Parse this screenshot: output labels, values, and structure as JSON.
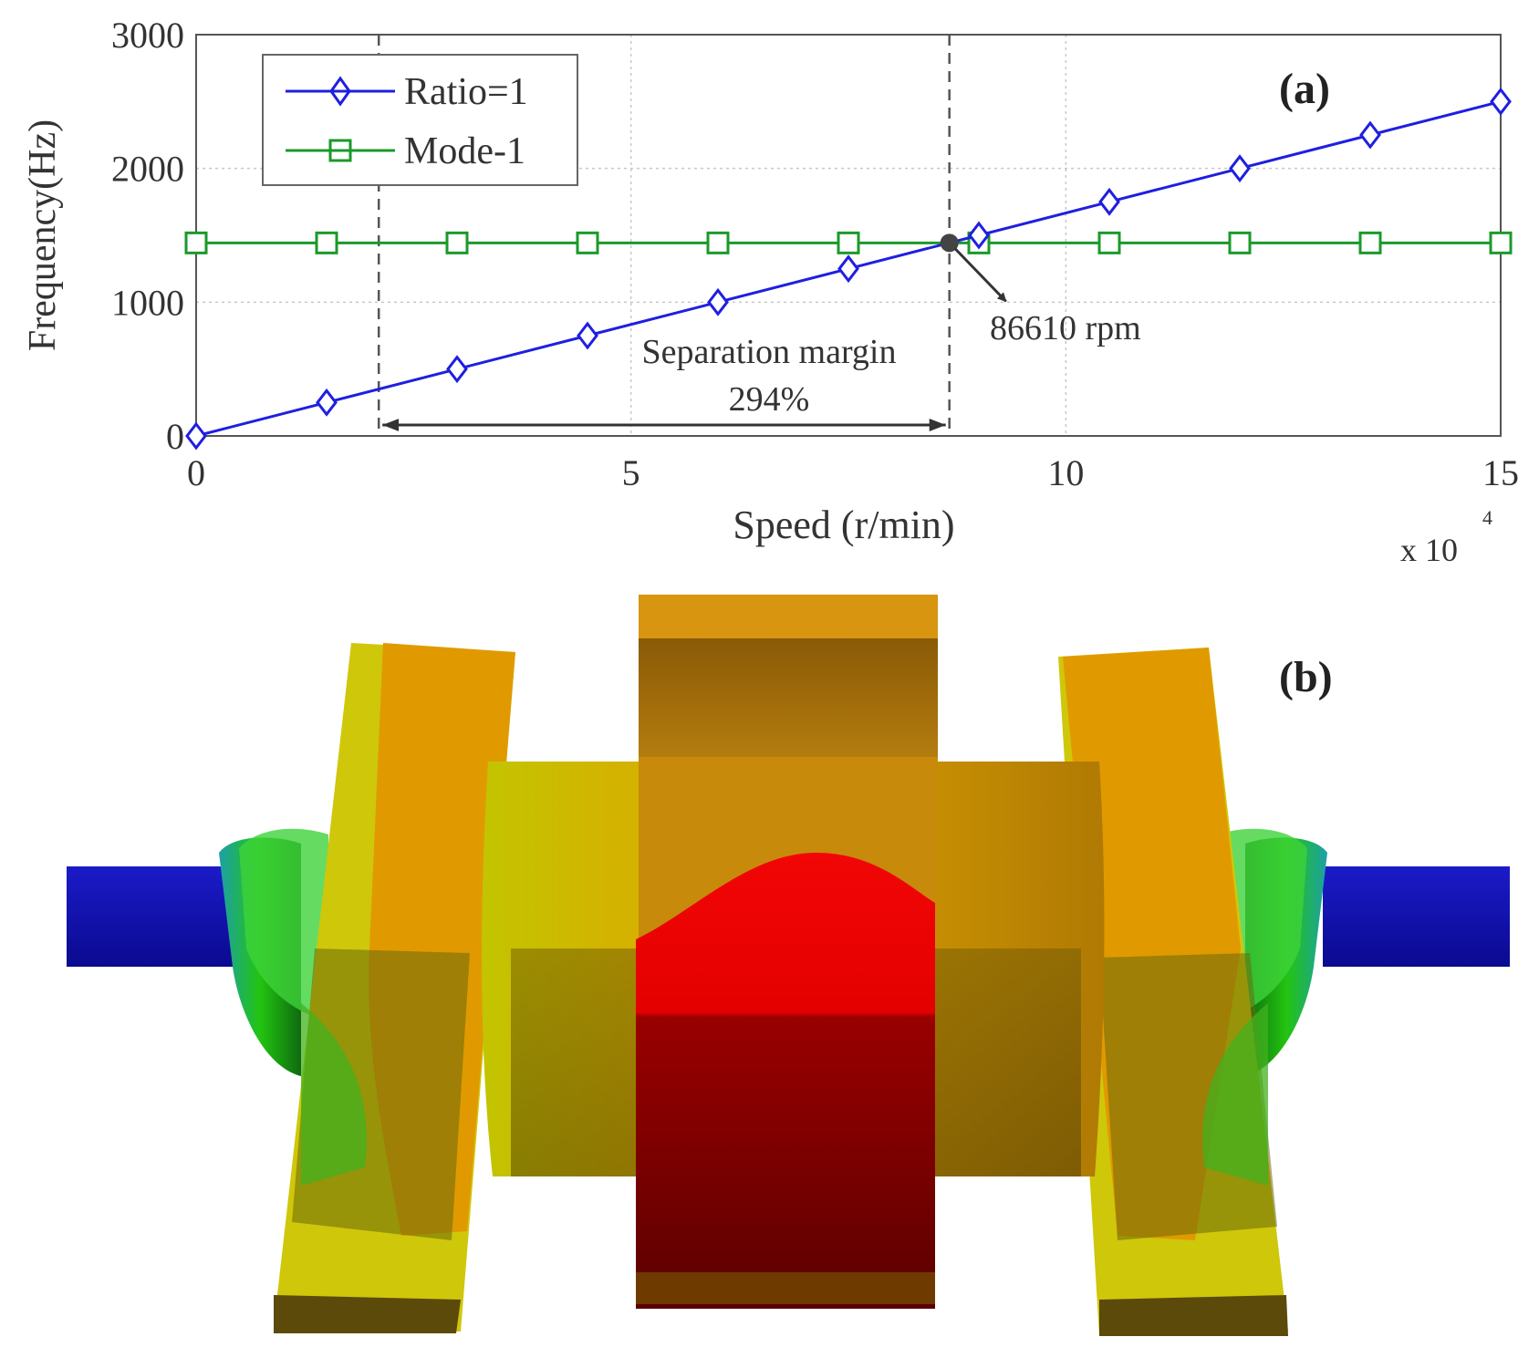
{
  "chart_data": {
    "type": "line",
    "panel_label": "(a)",
    "xlabel": "Speed (r/min)",
    "ylabel": "Frequency(Hz)",
    "x_multiplier": "x 10",
    "x_multiplier_exp": "4",
    "xlim": [
      0,
      150000
    ],
    "ylim": [
      0,
      3000
    ],
    "x_ticks": [
      0,
      50000,
      100000,
      150000
    ],
    "x_tick_labels": [
      "0",
      "5",
      "10",
      "15"
    ],
    "y_ticks": [
      0,
      1000,
      2000,
      3000
    ],
    "y_tick_labels": [
      "0",
      "1000",
      "2000",
      "3000"
    ],
    "grid": true,
    "legend_position": "top-left",
    "x": [
      0,
      15000,
      30000,
      45000,
      60000,
      75000,
      90000,
      105000,
      120000,
      135000,
      150000
    ],
    "series": [
      {
        "name": "Ratio=1",
        "color": "#1f1fe0",
        "marker": "diamond",
        "values": [
          0,
          250,
          500,
          750,
          1000,
          1250,
          1500,
          1750,
          2000,
          2250,
          2500
        ]
      },
      {
        "name": "Mode-1",
        "color": "#1a9a2a",
        "marker": "square",
        "values": [
          1443,
          1443,
          1443,
          1443,
          1443,
          1443,
          1443,
          1443,
          1443,
          1443,
          1443
        ]
      }
    ],
    "reference_lines_x": [
      21000,
      86610
    ],
    "intersection": {
      "x": 86610,
      "y": 1443
    },
    "annotations": {
      "crossing_label": "86610 rpm",
      "margin_label_1": "Separation margin",
      "margin_label_2": "294%"
    }
  },
  "image_panel": {
    "label": "(b)"
  }
}
